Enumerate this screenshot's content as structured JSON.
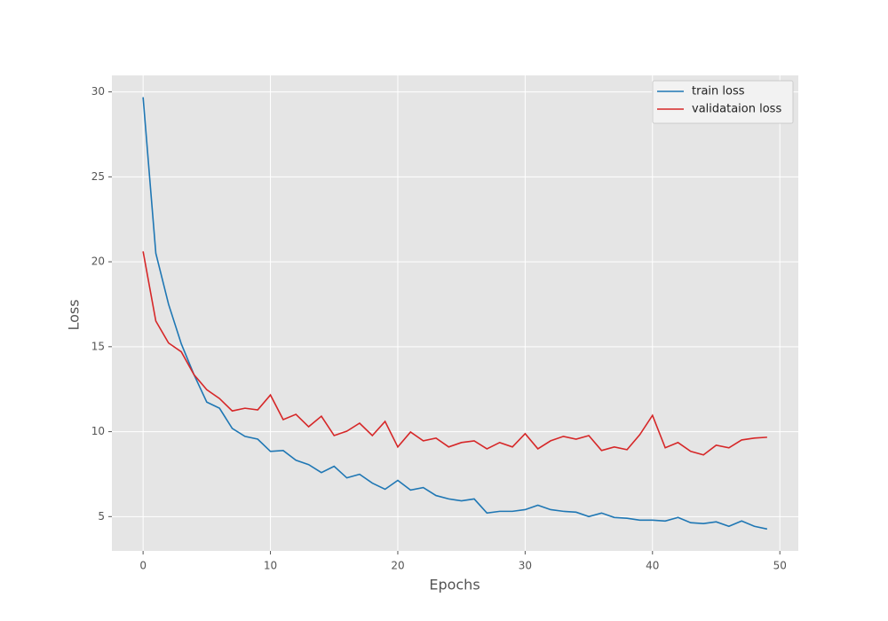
{
  "chart_data": {
    "type": "line",
    "x_label": "Epochs",
    "y_label": "Loss",
    "x": [
      0,
      1,
      2,
      3,
      4,
      5,
      6,
      7,
      8,
      9,
      10,
      11,
      12,
      13,
      14,
      15,
      16,
      17,
      18,
      19,
      20,
      21,
      22,
      23,
      24,
      25,
      26,
      27,
      28,
      29,
      30,
      31,
      32,
      33,
      34,
      35,
      36,
      37,
      38,
      39,
      40,
      41,
      42,
      43,
      44,
      45,
      46,
      47,
      48,
      49
    ],
    "series": [
      {
        "name": "train loss",
        "color": "#1f77b4",
        "values": [
          29.69,
          20.5,
          17.5,
          15.17,
          13.35,
          11.74,
          11.38,
          10.19,
          9.72,
          9.56,
          8.84,
          8.89,
          8.32,
          8.06,
          7.59,
          7.96,
          7.28,
          7.49,
          6.97,
          6.61,
          7.13,
          6.56,
          6.71,
          6.24,
          6.04,
          5.93,
          6.04,
          5.21,
          5.31,
          5.31,
          5.41,
          5.67,
          5.41,
          5.31,
          5.26,
          5.0,
          5.21,
          4.95,
          4.9,
          4.79,
          4.79,
          4.74,
          4.95,
          4.64,
          4.59,
          4.69,
          4.43,
          4.74,
          4.43,
          4.27
        ]
      },
      {
        "name": "validataion loss",
        "color": "#d62728",
        "values": [
          20.61,
          16.51,
          15.22,
          14.7,
          13.35,
          12.47,
          11.95,
          11.22,
          11.38,
          11.28,
          12.16,
          10.71,
          11.02,
          10.29,
          10.91,
          9.77,
          10.03,
          10.5,
          9.77,
          10.6,
          9.1,
          9.98,
          9.46,
          9.62,
          9.1,
          9.36,
          9.46,
          8.99,
          9.36,
          9.1,
          9.88,
          8.99,
          9.46,
          9.72,
          9.56,
          9.77,
          8.89,
          9.1,
          8.94,
          9.82,
          10.96,
          9.05,
          9.36,
          8.84,
          8.63,
          9.2,
          9.05,
          9.51,
          9.62,
          9.67
        ]
      }
    ],
    "xlim": [
      -2.45,
      51.45
    ],
    "xticks": [
      0,
      10,
      20,
      30,
      40,
      50
    ],
    "ylim": [
      2.98,
      30.97
    ],
    "yticks": [
      5,
      10,
      15,
      20,
      25,
      30
    ],
    "grid": true,
    "legend": "upper-right"
  }
}
